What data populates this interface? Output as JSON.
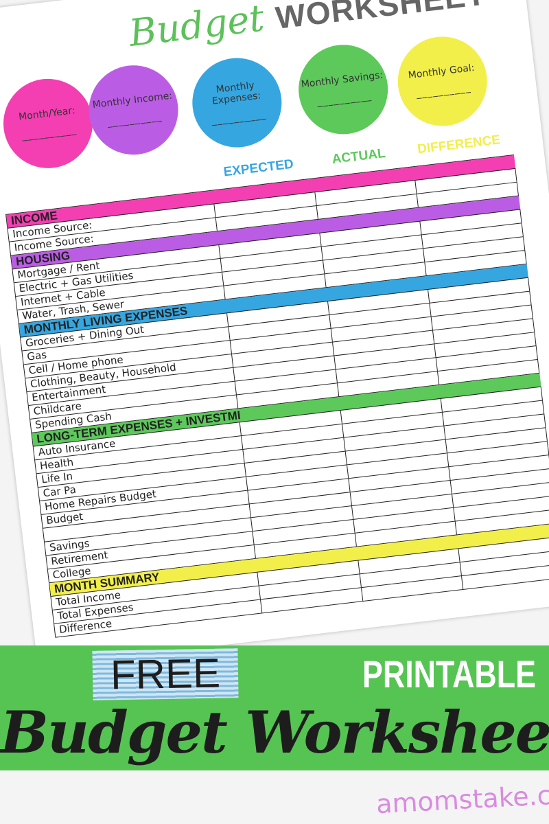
{
  "title": {
    "script": "Budget",
    "bold": "WORKSHEET"
  },
  "circles": [
    {
      "label": "Month/Year:",
      "color": "#f33fb2"
    },
    {
      "label": "Monthly Income:",
      "color": "#bb5de4"
    },
    {
      "label": "Monthly Expenses:",
      "color": "#36a6e0"
    },
    {
      "label": "Monthly Savings:",
      "color": "#5cc95a"
    },
    {
      "label": "Monthly Goal:",
      "color": "#f2ef4a"
    }
  ],
  "blank_line": "__________",
  "columns": [
    {
      "label": "EXPECTED",
      "color": "#36a6e0"
    },
    {
      "label": "ACTUAL",
      "color": "#5cc95a"
    },
    {
      "label": "DIFFERENCE",
      "color": "#f2ef4a"
    }
  ],
  "rows": [
    {
      "label": "INCOME",
      "header": true,
      "color": "#f33fb2"
    },
    {
      "label": "Income Source:"
    },
    {
      "label": "Income Source:"
    },
    {
      "label": "HOUSING",
      "header": true,
      "color": "#bb5de4"
    },
    {
      "label": "Mortgage / Rent"
    },
    {
      "label": "Electric + Gas Utilities"
    },
    {
      "label": "Internet + Cable"
    },
    {
      "label": "Water, Trash, Sewer"
    },
    {
      "label": "MONTHLY LIVING EXPENSES",
      "header": true,
      "color": "#36a6e0"
    },
    {
      "label": "Groceries + Dining Out"
    },
    {
      "label": "Gas"
    },
    {
      "label": "Cell / Home phone"
    },
    {
      "label": "Clothing, Beauty, Household"
    },
    {
      "label": "Entertainment"
    },
    {
      "label": "Childcare"
    },
    {
      "label": "Spending Cash"
    },
    {
      "label": "LONG-TERM EXPENSES + INVESTMENTS",
      "header": true,
      "color": "#5cc95a"
    },
    {
      "label": "Auto Insurance"
    },
    {
      "label": "Health"
    },
    {
      "label": "Life In"
    },
    {
      "label": "Car Pa"
    },
    {
      "label": "Home Repairs Budget"
    },
    {
      "label": "Budget"
    },
    {
      "label": ""
    },
    {
      "label": "Savings"
    },
    {
      "label": "Retirement"
    },
    {
      "label": "College"
    },
    {
      "label": "MONTH SUMMARY",
      "header": true,
      "color": "#f2ef4a"
    },
    {
      "label": "Total Income"
    },
    {
      "label": "Total Expenses"
    },
    {
      "label": "Difference"
    }
  ],
  "banner": {
    "free": "FREE",
    "script": "Budget Worksheet",
    "printable": "PRINTABLE",
    "color": "#56c452"
  },
  "site": "amomstake.com"
}
